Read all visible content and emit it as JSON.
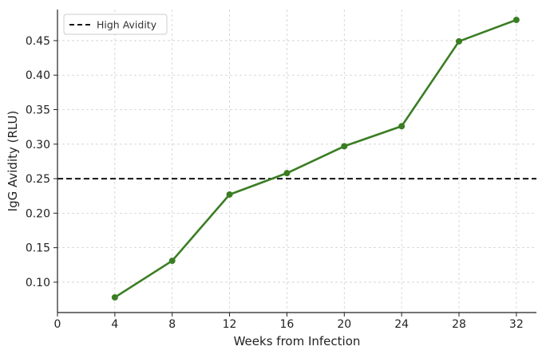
{
  "chart_data": {
    "type": "line",
    "xlabel": "Weeks from Infection",
    "ylabel": "IgG Avidity (RLU)",
    "xlim": [
      0,
      33.4
    ],
    "ylim": [
      0.056,
      0.495
    ],
    "xticks": [
      0,
      4,
      8,
      12,
      16,
      20,
      24,
      28,
      32
    ],
    "xtick_labels": [
      "0",
      "4",
      "8",
      "12",
      "16",
      "20",
      "24",
      "28",
      "32"
    ],
    "yticks": [
      0.1,
      0.15,
      0.2,
      0.25,
      0.3,
      0.35,
      0.4,
      0.45
    ],
    "ytick_labels": [
      "0.10",
      "0.15",
      "0.20",
      "0.25",
      "0.30",
      "0.35",
      "0.40",
      "0.45"
    ],
    "grid": true,
    "legend_position": "top-left",
    "series": [
      {
        "x": [
          4,
          8,
          12,
          16,
          20,
          24,
          28,
          32
        ],
        "values": [
          0.078,
          0.131,
          0.227,
          0.258,
          0.297,
          0.326,
          0.449,
          0.48
        ],
        "color": "#3a7d22"
      }
    ],
    "reference_lines": [
      {
        "name": "High Avidity",
        "y": 0.25,
        "style": "dashed",
        "color": "#111111"
      }
    ]
  }
}
